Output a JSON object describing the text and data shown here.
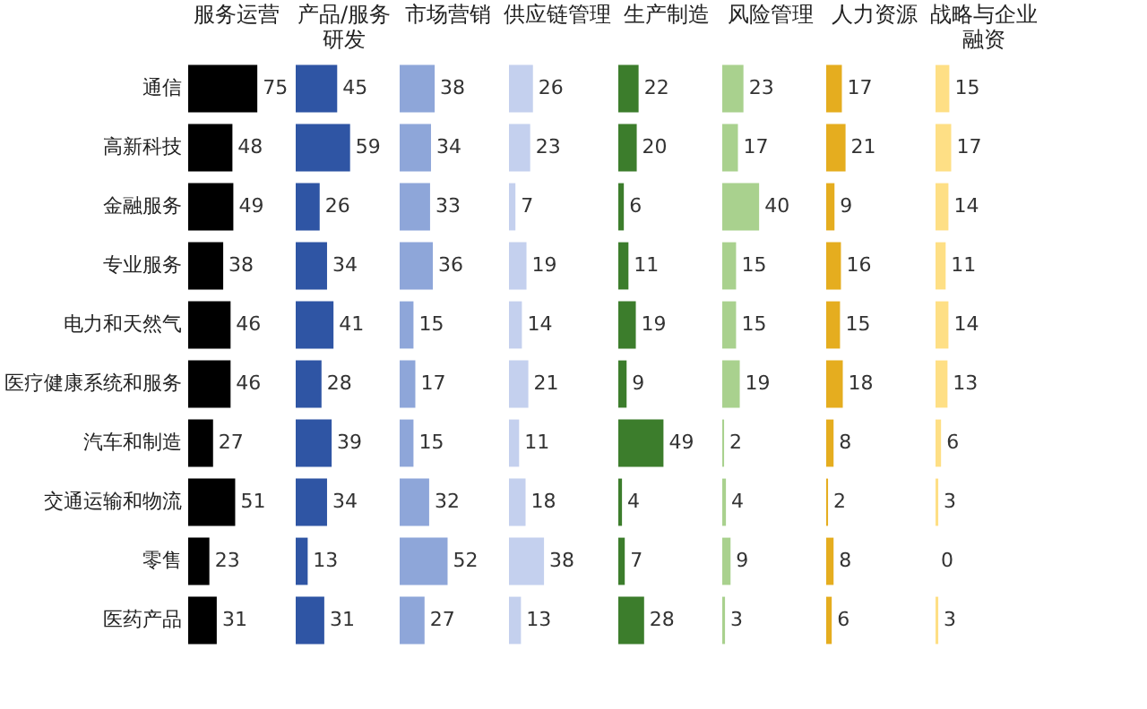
{
  "chart_data": [
    {
      "type": "bar",
      "orientation": "horizontal",
      "title": "服务运营",
      "categories": [
        "通信",
        "高新科技",
        "金融服务",
        "专业服务",
        "电力和天然气",
        "医疗健康系统和服务",
        "汽车和制造",
        "交通运输和物流",
        "零售",
        "医药产品"
      ],
      "values": [
        75,
        48,
        49,
        38,
        46,
        46,
        27,
        51,
        23,
        31
      ],
      "color": "#000000",
      "data_labels": true,
      "tick_labels": "y"
    },
    {
      "type": "bar",
      "orientation": "horizontal",
      "title": "产品/服务研发",
      "categories": [
        "通信",
        "高新科技",
        "金融服务",
        "专业服务",
        "电力和天然气",
        "医疗健康系统和服务",
        "汽车和制造",
        "交通运输和物流",
        "零售",
        "医药产品"
      ],
      "values": [
        45,
        59,
        26,
        34,
        41,
        28,
        39,
        34,
        13,
        31
      ],
      "color": "#2f55a4",
      "data_labels": true,
      "tick_labels": false
    },
    {
      "type": "bar",
      "orientation": "horizontal",
      "title": "市场营销",
      "categories": [
        "通信",
        "高新科技",
        "金融服务",
        "专业服务",
        "电力和天然气",
        "医疗健康系统和服务",
        "汽车和制造",
        "交通运输和物流",
        "零售",
        "医药产品"
      ],
      "values": [
        38,
        34,
        33,
        36,
        15,
        17,
        15,
        32,
        52,
        27
      ],
      "color": "#8ea6d9",
      "data_labels": true,
      "tick_labels": false
    },
    {
      "type": "bar",
      "orientation": "horizontal",
      "title": "供应链管理",
      "categories": [
        "通信",
        "高新科技",
        "金融服务",
        "专业服务",
        "电力和天然气",
        "医疗健康系统和服务",
        "汽车和制造",
        "交通运输和物流",
        "零售",
        "医药产品"
      ],
      "values": [
        26,
        23,
        7,
        19,
        14,
        21,
        11,
        18,
        38,
        13
      ],
      "color": "#c4d0ee",
      "data_labels": true,
      "tick_labels": false
    },
    {
      "type": "bar",
      "orientation": "horizontal",
      "title": "生产制造",
      "categories": [
        "通信",
        "高新科技",
        "金融服务",
        "专业服务",
        "电力和天然气",
        "医疗健康系统和服务",
        "汽车和制造",
        "交通运输和物流",
        "零售",
        "医药产品"
      ],
      "values": [
        22,
        20,
        6,
        11,
        19,
        9,
        49,
        4,
        7,
        28
      ],
      "color": "#3c7d2c",
      "data_labels": true,
      "tick_labels": false
    },
    {
      "type": "bar",
      "orientation": "horizontal",
      "title": "风险管理",
      "categories": [
        "通信",
        "高新科技",
        "金融服务",
        "专业服务",
        "电力和天然气",
        "医疗健康系统和服务",
        "汽车和制造",
        "交通运输和物流",
        "零售",
        "医药产品"
      ],
      "values": [
        23,
        17,
        40,
        15,
        15,
        19,
        2,
        4,
        9,
        3
      ],
      "color": "#a9d18e",
      "data_labels": true,
      "tick_labels": false
    },
    {
      "type": "bar",
      "orientation": "horizontal",
      "title": "人力资源",
      "categories": [
        "通信",
        "高新科技",
        "金融服务",
        "专业服务",
        "电力和天然气",
        "医疗健康系统和服务",
        "汽车和制造",
        "交通运输和物流",
        "零售",
        "医药产品"
      ],
      "values": [
        17,
        21,
        9,
        16,
        15,
        18,
        8,
        2,
        8,
        6
      ],
      "color": "#e5ad1f",
      "data_labels": true,
      "tick_labels": false
    },
    {
      "type": "bar",
      "orientation": "horizontal",
      "title": "战略与企业融资",
      "categories": [
        "通信",
        "高新科技",
        "金融服务",
        "专业服务",
        "电力和天然气",
        "医疗健康系统和服务",
        "汽车和制造",
        "交通运输和物流",
        "零售",
        "医药产品"
      ],
      "values": [
        15,
        17,
        14,
        11,
        14,
        13,
        6,
        3,
        0,
        3
      ],
      "color": "#fedf85",
      "data_labels": true,
      "tick_labels": false
    }
  ]
}
